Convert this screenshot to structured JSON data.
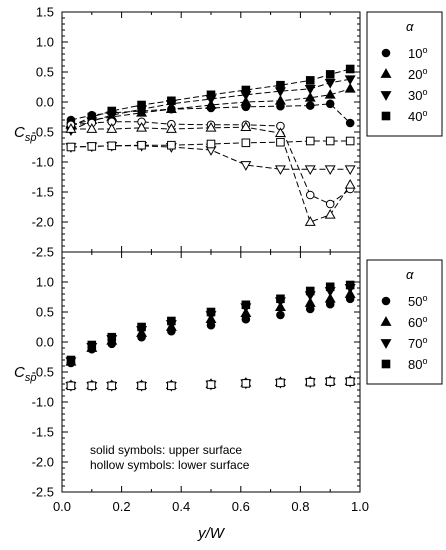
{
  "chart_data": [
    {
      "type": "scatter",
      "panel": "top",
      "ylabel_main": "C",
      "ylabel_sub": "sp",
      "ylim": [
        -2.5,
        1.5
      ],
      "yticks": [
        "1.5",
        "1.0",
        "0.5",
        "0.0",
        "-0.5",
        "-1.0",
        "-1.5",
        "-2.0",
        "-2.5"
      ],
      "xlim": [
        0.0,
        1.0
      ],
      "dashed_lines": true,
      "legend": {
        "title": "α",
        "placement": "top-right, outside plot",
        "entries": [
          {
            "base": "10",
            "sup": "o",
            "marker": "circle"
          },
          {
            "base": "20",
            "sup": "o",
            "marker": "triangle-up"
          },
          {
            "base": "30",
            "sup": "o",
            "marker": "triangle-down"
          },
          {
            "base": "40",
            "sup": "o",
            "marker": "square"
          }
        ]
      },
      "x": [
        0.03,
        0.1,
        0.167,
        0.267,
        0.367,
        0.5,
        0.617,
        0.733,
        0.833,
        0.9,
        0.967
      ],
      "series": [
        {
          "label": "10° upper",
          "marker": "circle",
          "filled": true,
          "values": [
            -0.3,
            -0.22,
            -0.18,
            -0.15,
            -0.12,
            -0.1,
            -0.08,
            -0.07,
            -0.06,
            -0.03,
            -0.35
          ]
        },
        {
          "label": "20° upper",
          "marker": "triangle-up",
          "filled": true,
          "values": [
            -0.38,
            -0.3,
            -0.25,
            -0.18,
            -0.12,
            -0.05,
            0.0,
            0.02,
            0.07,
            0.12,
            0.22
          ]
        },
        {
          "label": "30° upper",
          "marker": "triangle-down",
          "filled": true,
          "values": [
            -0.47,
            -0.32,
            -0.22,
            -0.12,
            -0.03,
            0.05,
            0.12,
            0.18,
            0.22,
            0.32,
            0.38
          ]
        },
        {
          "label": "40° upper",
          "marker": "square",
          "filled": true,
          "values": [
            -0.4,
            -0.25,
            -0.15,
            -0.05,
            0.02,
            0.12,
            0.2,
            0.28,
            0.36,
            0.46,
            0.55
          ]
        },
        {
          "label": "10° lower",
          "marker": "circle",
          "filled": false,
          "values": [
            -0.38,
            -0.35,
            -0.33,
            -0.33,
            -0.37,
            -0.38,
            -0.38,
            -0.4,
            -1.55,
            -1.7,
            -1.45
          ]
        },
        {
          "label": "20° lower",
          "marker": "triangle-up",
          "filled": false,
          "values": [
            -0.45,
            -0.45,
            -0.45,
            -0.43,
            -0.45,
            -0.43,
            -0.42,
            -0.52,
            -2.0,
            -1.88,
            -1.38
          ]
        },
        {
          "label": "30° lower",
          "marker": "triangle-down",
          "filled": false,
          "values": [
            -0.75,
            -0.74,
            -0.73,
            -0.73,
            -0.75,
            -0.8,
            -1.05,
            -1.12,
            -1.12,
            -1.12,
            -1.12
          ]
        },
        {
          "label": "40° lower",
          "marker": "square",
          "filled": false,
          "values": [
            -0.75,
            -0.74,
            -0.73,
            -0.72,
            -0.72,
            -0.7,
            -0.68,
            -0.67,
            -0.65,
            -0.65,
            -0.65
          ]
        }
      ]
    },
    {
      "type": "scatter",
      "panel": "bottom",
      "ylabel_main": "C",
      "ylabel_sub": "sp",
      "ylim": [
        -2.5,
        1.5
      ],
      "yticks": [
        "1.0",
        "0.5",
        "0.0",
        "-0.5",
        "-1.0",
        "-1.5",
        "-2.0",
        "-2.5"
      ],
      "xlim": [
        0.0,
        1.0
      ],
      "xticks": [
        "0.0",
        "0.2",
        "0.4",
        "0.6",
        "0.8",
        "1.0"
      ],
      "xlabel": "y/W",
      "dashed_lines": false,
      "annotation_lines": [
        "solid symbols: upper surface",
        "hollow symbols: lower surface"
      ],
      "legend": {
        "title": "α",
        "placement": "right, outside plot",
        "entries": [
          {
            "base": "50",
            "sup": "o",
            "marker": "circle"
          },
          {
            "base": "60",
            "sup": "o",
            "marker": "triangle-up"
          },
          {
            "base": "70",
            "sup": "o",
            "marker": "triangle-down"
          },
          {
            "base": "80",
            "sup": "o",
            "marker": "square"
          }
        ]
      },
      "x": [
        0.03,
        0.1,
        0.167,
        0.267,
        0.367,
        0.5,
        0.617,
        0.733,
        0.833,
        0.9,
        0.967
      ],
      "series": [
        {
          "label": "50° upper",
          "marker": "circle",
          "filled": true,
          "values": [
            -0.35,
            -0.12,
            -0.03,
            0.08,
            0.18,
            0.28,
            0.38,
            0.45,
            0.55,
            0.63,
            0.72
          ]
        },
        {
          "label": "60° upper",
          "marker": "triangle-up",
          "filled": true,
          "values": [
            -0.33,
            -0.1,
            0.02,
            0.15,
            0.25,
            0.38,
            0.48,
            0.58,
            0.65,
            0.72,
            0.8
          ]
        },
        {
          "label": "70° upper",
          "marker": "triangle-down",
          "filled": true,
          "values": [
            -0.32,
            -0.08,
            0.05,
            0.2,
            0.3,
            0.45,
            0.58,
            0.68,
            0.78,
            0.85,
            0.9
          ]
        },
        {
          "label": "80° upper",
          "marker": "square",
          "filled": true,
          "values": [
            -0.3,
            -0.05,
            0.08,
            0.25,
            0.35,
            0.5,
            0.62,
            0.72,
            0.85,
            0.92,
            0.95
          ]
        },
        {
          "label": "50° lower",
          "marker": "circle",
          "filled": false,
          "values": [
            -0.72,
            -0.72,
            -0.72,
            -0.72,
            -0.72,
            -0.7,
            -0.68,
            -0.67,
            -0.66,
            -0.65,
            -0.65
          ]
        },
        {
          "label": "60° lower",
          "marker": "triangle-up",
          "filled": false,
          "values": [
            -0.72,
            -0.72,
            -0.72,
            -0.72,
            -0.72,
            -0.7,
            -0.68,
            -0.67,
            -0.66,
            -0.65,
            -0.65
          ]
        },
        {
          "label": "70° lower",
          "marker": "triangle-down",
          "filled": false,
          "values": [
            -0.73,
            -0.73,
            -0.73,
            -0.73,
            -0.73,
            -0.71,
            -0.69,
            -0.68,
            -0.67,
            -0.66,
            -0.66
          ]
        },
        {
          "label": "80° lower",
          "marker": "square",
          "filled": false,
          "values": [
            -0.73,
            -0.73,
            -0.73,
            -0.73,
            -0.73,
            -0.71,
            -0.69,
            -0.68,
            -0.67,
            -0.66,
            -0.66
          ]
        }
      ]
    }
  ]
}
